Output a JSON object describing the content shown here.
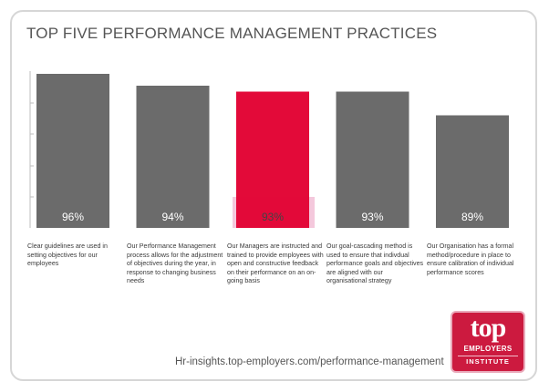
{
  "title": "TOP FIVE PERFORMANCE MANAGEMENT PRACTICES",
  "footer": {
    "url": "Hr-insights.top-employers.com/performance-management"
  },
  "logo": {
    "word": "top",
    "line1": "EMPLOYERS",
    "line2": "INSTITUTE"
  },
  "colors": {
    "bar": "#6b6b6b",
    "highlight": "#e30a39",
    "text": "#555555"
  },
  "chart_data": {
    "type": "bar",
    "title": "TOP FIVE PERFORMANCE MANAGEMENT PRACTICES",
    "categories": [
      "Clear guidelines are used in setting objectives for our employees",
      "Our Performance Management process allows for the adjustment of objectives during the year, in response to changing business needs",
      "Our Managers are instructed and trained to provide employees with open and constructive feedback on their performance on an on-going basis",
      "Our goal-cascading method is used to ensure that indivdual performance goals and objectives are aligned with our organisational strategy",
      "Our Organisation has a formal method/procedure in place to ensure calibration of individual performance scores"
    ],
    "values": [
      96,
      94,
      93,
      93,
      89
    ],
    "value_labels": [
      "96%",
      "94%",
      "93%",
      "93%",
      "89%"
    ],
    "highlight_index": 2,
    "xlabel": "",
    "ylabel": "",
    "ylim": [
      70,
      100
    ],
    "grid": false,
    "legend": "none"
  }
}
